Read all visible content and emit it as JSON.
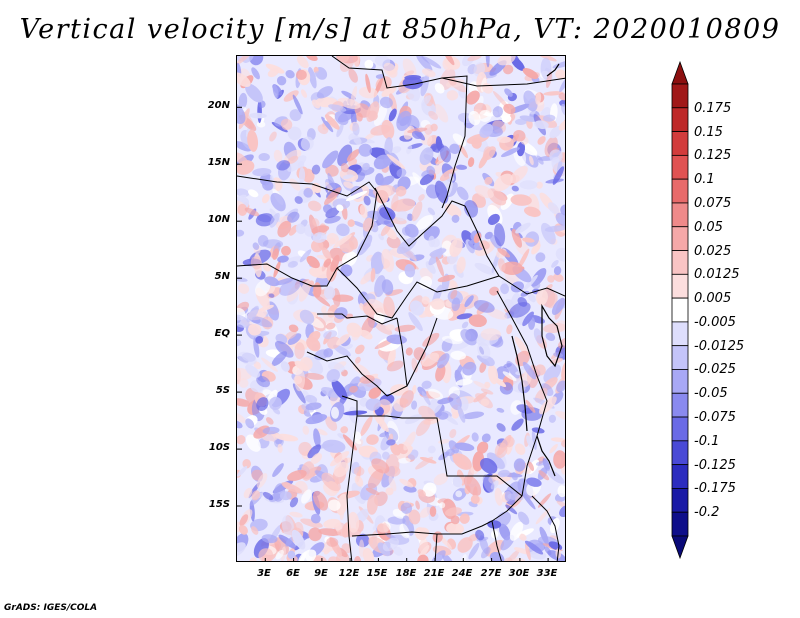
{
  "title": "Vertical velocity [m/s] at 850hPa, VT: 2020010809",
  "map": {
    "lat_labels": [
      "20N",
      "15N",
      "10N",
      "5N",
      "EQ",
      "5S",
      "10S",
      "15S"
    ],
    "lon_labels": [
      "3E",
      "6E",
      "9E",
      "12E",
      "15E",
      "18E",
      "21E",
      "24E",
      "27E",
      "30E",
      "33E"
    ],
    "lat_range": [
      -20,
      24.5
    ],
    "lon_range": [
      0,
      35
    ]
  },
  "colorbar": {
    "labels": [
      "0.175",
      "0.15",
      "0.125",
      "0.1",
      "0.075",
      "0.05",
      "0.025",
      "0.0125",
      "0.005",
      "-0.005",
      "-0.0125",
      "-0.025",
      "-0.05",
      "-0.075",
      "-0.1",
      "-0.125",
      "-0.175",
      "-0.2"
    ],
    "colors": [
      "#a01818",
      "#be2828",
      "#d23c3c",
      "#e05252",
      "#e86a6a",
      "#ef8a8a",
      "#f5a8a8",
      "#f9c4c4",
      "#fcdede",
      "#ffffff",
      "#dedefc",
      "#c4c4f9",
      "#a8a8f5",
      "#8a8aef",
      "#6a6ae6",
      "#4a4ad6",
      "#2c2cbf",
      "#1a1aa6",
      "#0e0e8a"
    ],
    "top_arrow_color": "#8c1010",
    "bottom_arrow_color": "#0a0a78"
  },
  "footer": {
    "credit": "GrADS: IGES/COLA"
  }
}
